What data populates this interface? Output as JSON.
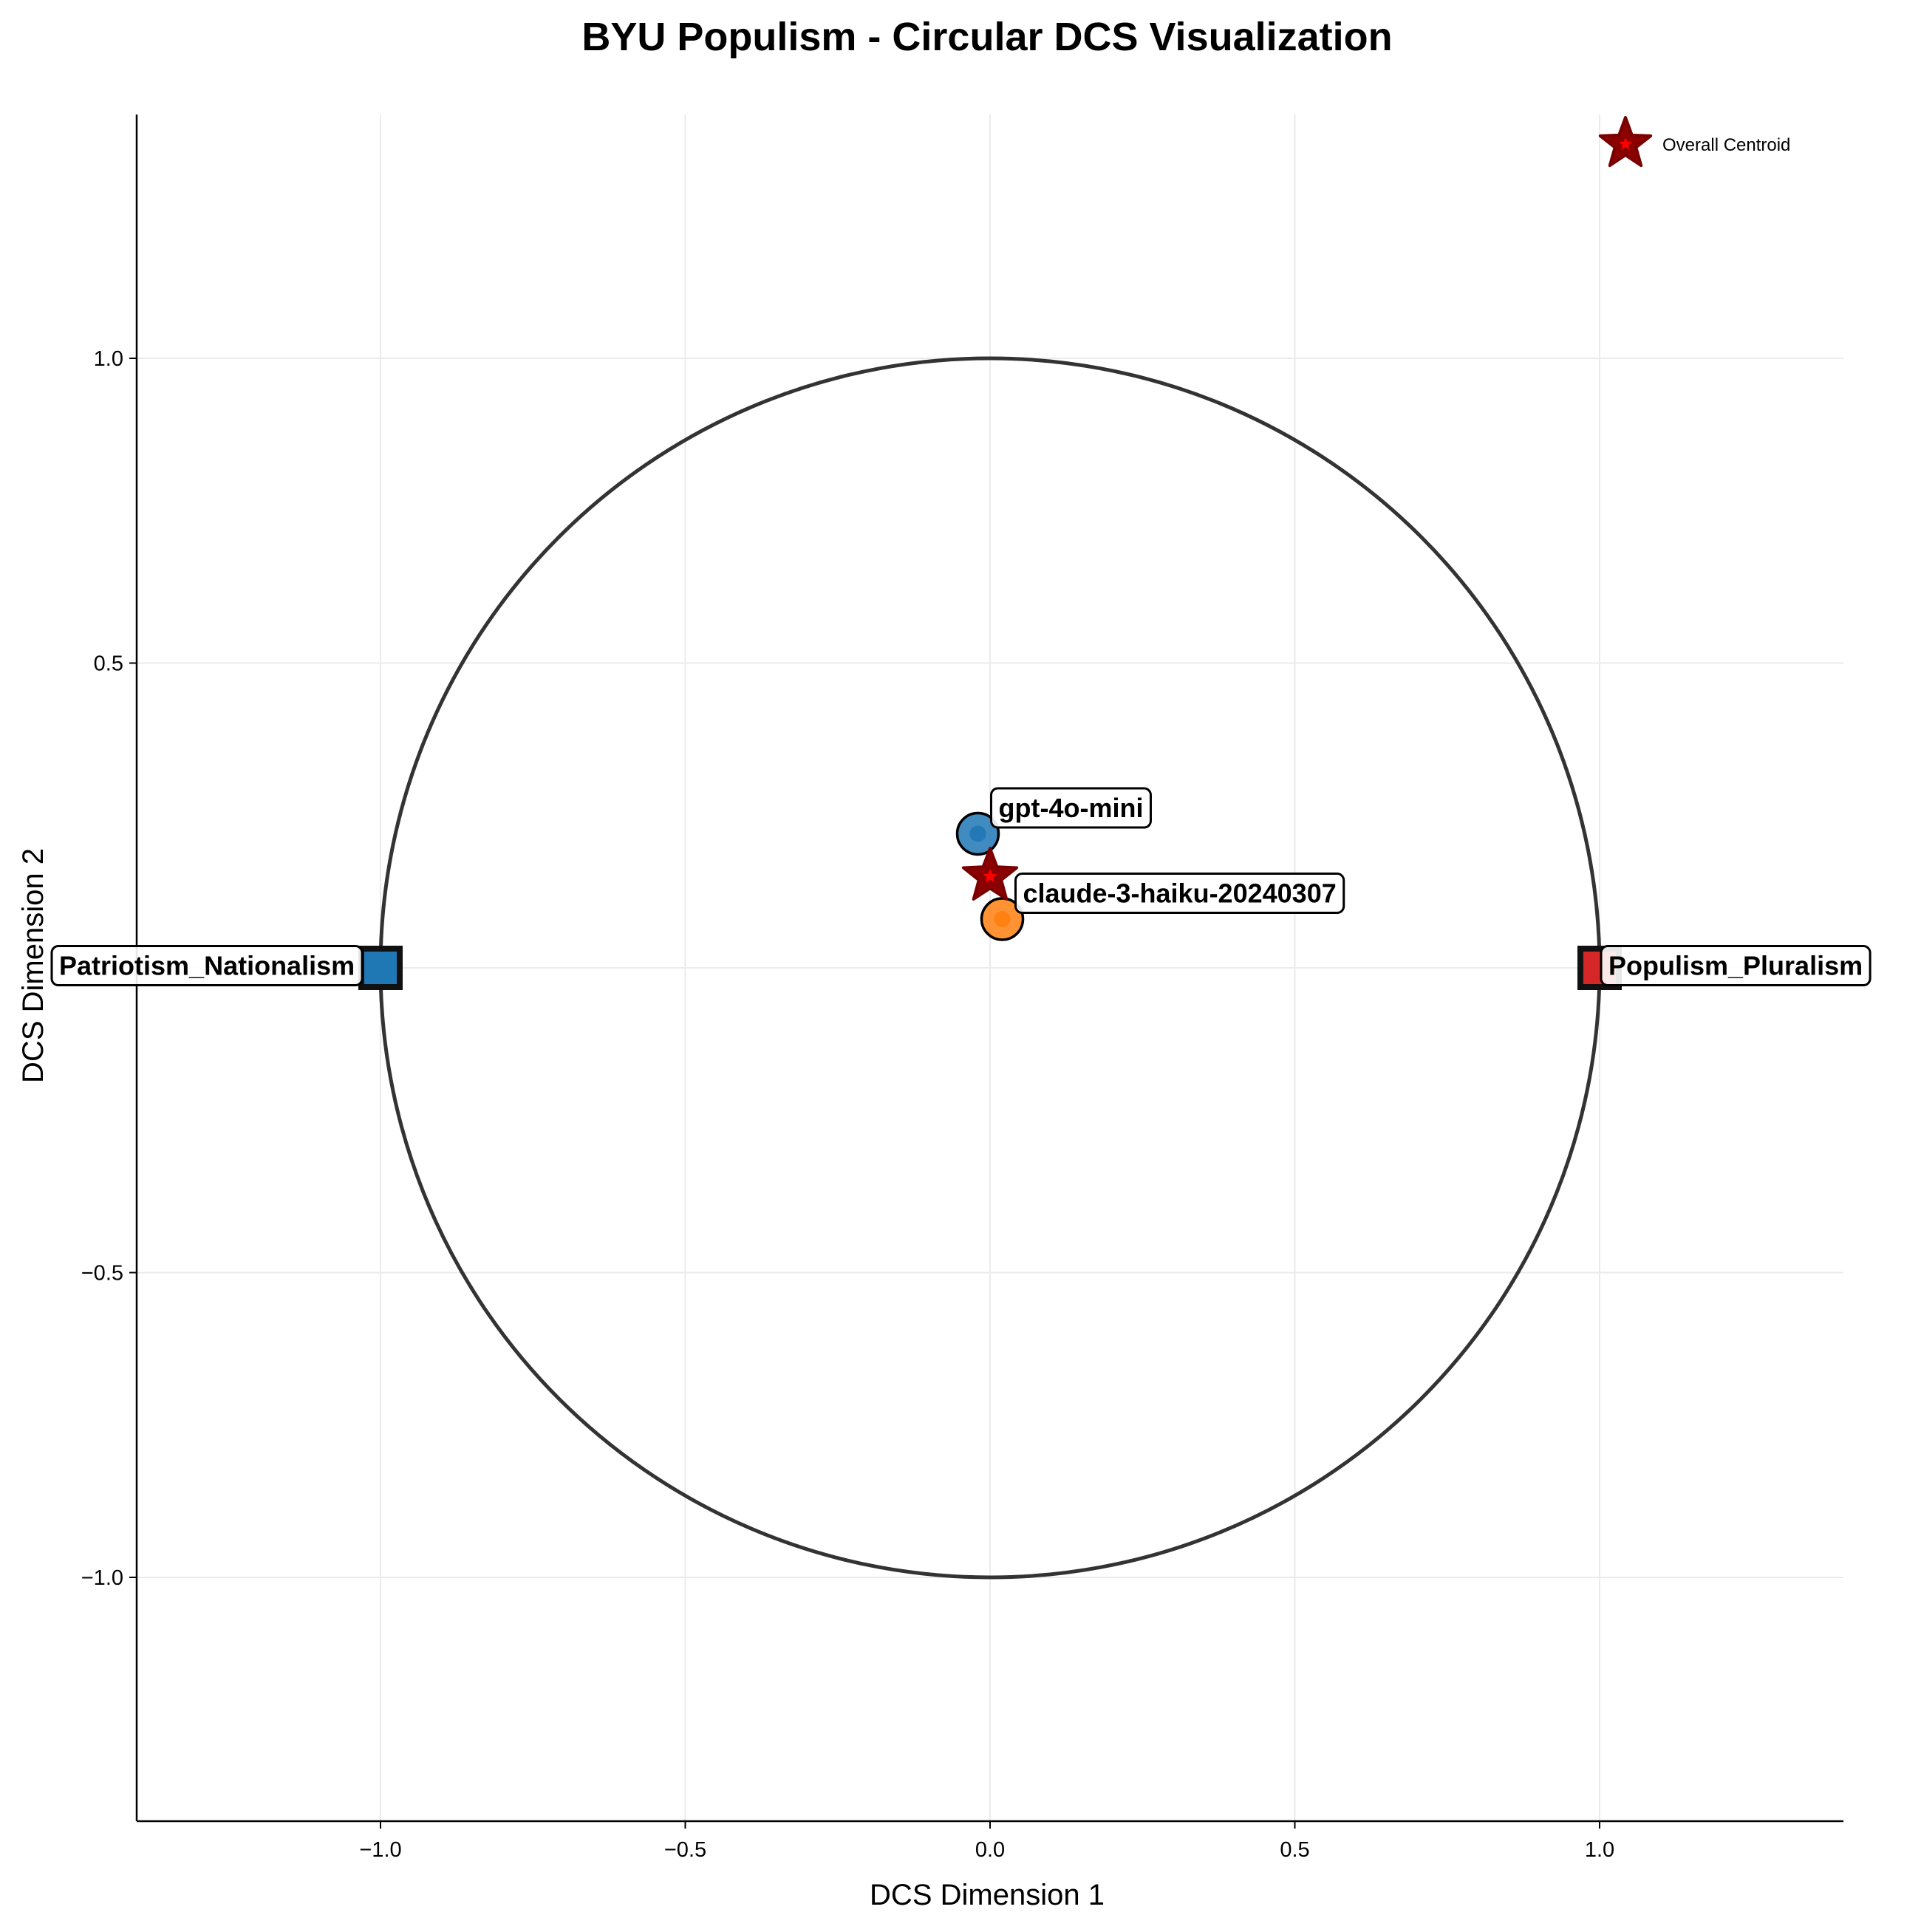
{
  "chart_data": {
    "type": "scatter",
    "title": "BYU Populism - Circular DCS Visualization",
    "xlabel": "DCS Dimension 1",
    "ylabel": "DCS Dimension 2",
    "xlim": [
      -1.4,
      1.4
    ],
    "ylim": [
      -1.4,
      1.4
    ],
    "xticks": [
      -1.0,
      -0.5,
      0.0,
      0.5,
      1.0
    ],
    "yticks": [
      -1.0,
      -0.5,
      0.5,
      1.0
    ],
    "xtick_labels": [
      "−1.0",
      "−0.5",
      "0.0",
      "0.5",
      "1.0"
    ],
    "ytick_labels": [
      "−1.0",
      "−0.5",
      "0.5",
      "1.0"
    ],
    "grid": true,
    "unit_circle": {
      "radius": 1.0,
      "color": "#333333"
    },
    "anchors": [
      {
        "label": "Patriotism_Nationalism",
        "x": -1.0,
        "y": 0.0,
        "color": "#1f77b4",
        "marker": "square"
      },
      {
        "label": "Populism_Pluralism",
        "x": 1.0,
        "y": 0.0,
        "color": "#d62728",
        "marker": "square"
      }
    ],
    "models": [
      {
        "label": "gpt-4o-mini",
        "x": -0.02,
        "y": 0.22,
        "color": "#1f77b4",
        "marker": "circle"
      },
      {
        "label": "claude-3-haiku-20240307",
        "x": 0.02,
        "y": 0.08,
        "color": "#ff7f0e",
        "marker": "circle"
      }
    ],
    "centroid": {
      "x": 0.0,
      "y": 0.15,
      "color": "#8b0000"
    },
    "legend": {
      "entries": [
        "Overall Centroid"
      ],
      "position": "top-right"
    }
  }
}
